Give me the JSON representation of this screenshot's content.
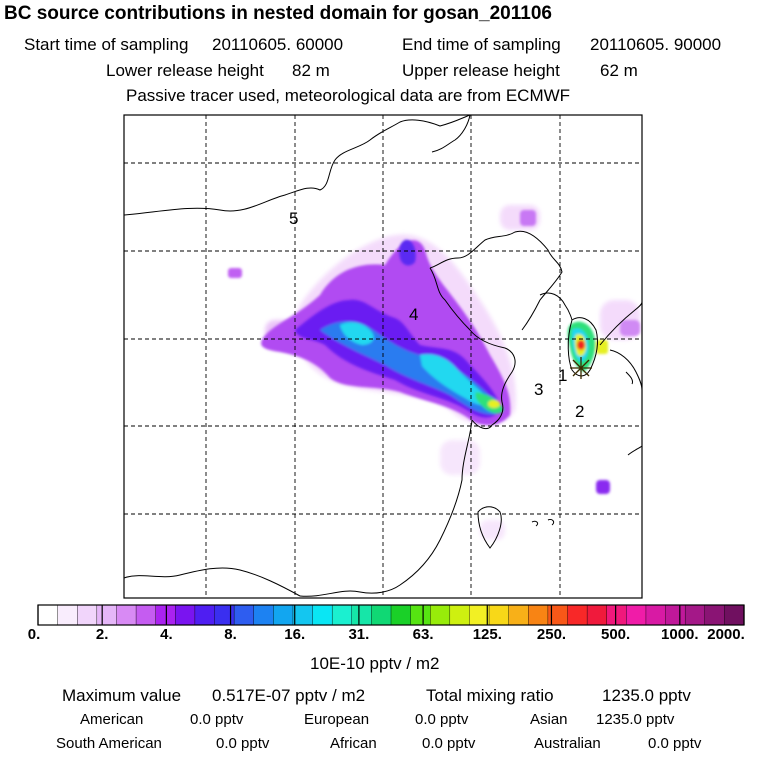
{
  "header": {
    "title": "BC  source contributions in nested domain for gosan_201106",
    "start_label": "Start time of sampling",
    "start_value": "20110605. 60000",
    "end_label": "End time of sampling",
    "end_value": "20110605. 90000",
    "lower_label": "Lower release height",
    "lower_value": "82 m",
    "upper_label": "Upper release height",
    "upper_value": "62 m",
    "note": "Passive tracer used, meteorological data are from ECMWF"
  },
  "map": {
    "region_labels": [
      "5",
      "4",
      "3",
      "1",
      "2"
    ],
    "colors": {
      "plume_low": "#f3d8fb",
      "plume_mid": "#b14cf2",
      "plume_violet": "#6a1bf2",
      "plume_blue": "#2a7cf0",
      "plume_cyan": "#24d8f0",
      "plume_green": "#2ee07a",
      "plume_yellow": "#e6f020",
      "plume_red": "#f02020",
      "station_marker": "#3a2a00"
    }
  },
  "colorbar": {
    "colors": [
      "#ffffff",
      "#f9edfd",
      "#f1d5fb",
      "#e5b6f8",
      "#d88af4",
      "#c55cf1",
      "#aa22f0",
      "#7a14f0",
      "#4f1ef2",
      "#3a2ff0",
      "#2e5df0",
      "#1d82f2",
      "#12a6f0",
      "#14c6f0",
      "#0ae6f4",
      "#1bf0d0",
      "#16e6a8",
      "#10d874",
      "#1ad028",
      "#56e412",
      "#98ec0a",
      "#cef010",
      "#f2f024",
      "#f8d818",
      "#f8b018",
      "#f88414",
      "#f85818",
      "#f82828",
      "#f01a3c",
      "#f0187c",
      "#f01ca8",
      "#d81aa4",
      "#c0189a",
      "#a41888",
      "#8a1474",
      "#701060"
    ],
    "tick_labels": [
      "0.",
      "2.",
      "4.",
      "8.",
      "16.",
      "31.",
      "63.",
      "125.",
      "250.",
      "500.",
      "1000.",
      "2000."
    ],
    "units": "10E-10 pptv / m2"
  },
  "stats": {
    "max_label": "Maximum value",
    "max_value": "0.517E-07 pptv / m2",
    "total_label": "Total mixing ratio",
    "total_value": "1235.0 pptv",
    "regions": [
      {
        "name": "American",
        "value": "0.0 pptv"
      },
      {
        "name": "European",
        "value": "0.0 pptv"
      },
      {
        "name": "Asian",
        "value": "1235.0 pptv"
      },
      {
        "name": "South American",
        "value": "0.0 pptv"
      },
      {
        "name": "African",
        "value": "0.0 pptv"
      },
      {
        "name": "Australian",
        "value": "0.0 pptv"
      }
    ]
  }
}
